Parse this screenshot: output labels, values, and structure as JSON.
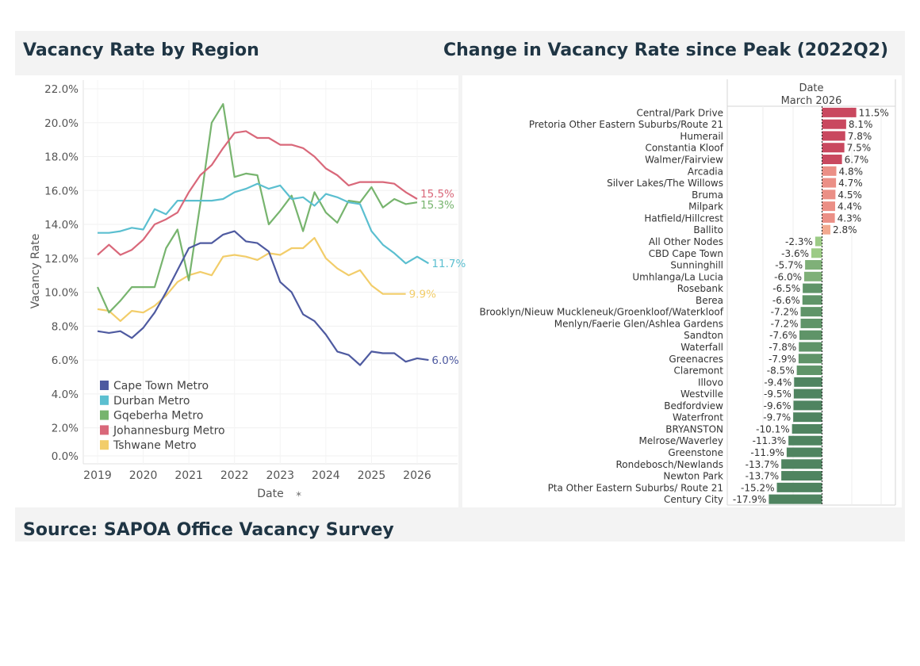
{
  "titles": {
    "left": "Vacancy Rate by Region",
    "right": "Change in Vacancy Rate since Peak (2022Q2)",
    "source": "Source: SAPOA Office Vacancy Survey"
  },
  "chart_data": [
    {
      "type": "line",
      "title": "Vacancy Rate by Region",
      "xlabel": "Date",
      "ylabel": "Vacancy Rate",
      "y_ticks": [
        "22.0%",
        "20.0%",
        "18.0%",
        "16.0%",
        "14.0%",
        "12.0%",
        "10.0%",
        "8.0%",
        "6.0%",
        "4.0%",
        "2.0%",
        "0.0%"
      ],
      "x_ticks": [
        "2019",
        "2020",
        "2021",
        "2022",
        "2023",
        "2024",
        "2025",
        "2026"
      ],
      "legend_position": "bottom-left",
      "grid": true,
      "series": [
        {
          "name": "Cape Town Metro",
          "color": "#4e5aa0",
          "end_label": "6.0%",
          "points": [
            [
              2019.0,
              7.7
            ],
            [
              2019.25,
              7.6
            ],
            [
              2019.5,
              7.7
            ],
            [
              2019.75,
              7.3
            ],
            [
              2020.0,
              7.9
            ],
            [
              2020.25,
              8.8
            ],
            [
              2020.5,
              10.0
            ],
            [
              2020.75,
              11.3
            ],
            [
              2021.0,
              12.6
            ],
            [
              2021.25,
              12.9
            ],
            [
              2021.5,
              12.9
            ],
            [
              2021.75,
              13.4
            ],
            [
              2022.0,
              13.6
            ],
            [
              2022.25,
              13.0
            ],
            [
              2022.5,
              12.9
            ],
            [
              2022.75,
              12.4
            ],
            [
              2023.0,
              10.6
            ],
            [
              2023.25,
              10.0
            ],
            [
              2023.5,
              8.7
            ],
            [
              2023.75,
              8.3
            ],
            [
              2024.0,
              7.5
            ],
            [
              2024.25,
              6.5
            ],
            [
              2024.5,
              6.3
            ],
            [
              2024.75,
              5.7
            ],
            [
              2025.0,
              6.5
            ],
            [
              2025.25,
              6.4
            ],
            [
              2025.5,
              6.4
            ],
            [
              2025.75,
              5.9
            ],
            [
              2026.0,
              6.1
            ],
            [
              2026.25,
              6.0
            ]
          ]
        },
        {
          "name": "Durban Metro",
          "color": "#5bbfd0",
          "end_label": "11.7%",
          "points": [
            [
              2019.0,
              13.5
            ],
            [
              2019.25,
              13.5
            ],
            [
              2019.5,
              13.6
            ],
            [
              2019.75,
              13.8
            ],
            [
              2020.0,
              13.7
            ],
            [
              2020.25,
              14.9
            ],
            [
              2020.5,
              14.6
            ],
            [
              2020.75,
              15.4
            ],
            [
              2021.0,
              15.4
            ],
            [
              2021.25,
              15.4
            ],
            [
              2021.5,
              15.4
            ],
            [
              2021.75,
              15.5
            ],
            [
              2022.0,
              15.9
            ],
            [
              2022.25,
              16.1
            ],
            [
              2022.5,
              16.4
            ],
            [
              2022.75,
              16.1
            ],
            [
              2023.0,
              16.3
            ],
            [
              2023.25,
              15.5
            ],
            [
              2023.5,
              15.6
            ],
            [
              2023.75,
              15.1
            ],
            [
              2024.0,
              15.8
            ],
            [
              2024.25,
              15.6
            ],
            [
              2024.5,
              15.3
            ],
            [
              2024.75,
              15.2
            ],
            [
              2025.0,
              13.6
            ],
            [
              2025.25,
              12.8
            ],
            [
              2025.5,
              12.3
            ],
            [
              2025.75,
              11.7
            ],
            [
              2026.0,
              12.1
            ],
            [
              2026.25,
              11.7
            ]
          ]
        },
        {
          "name": "Gqeberha Metro",
          "color": "#77b46e",
          "end_label": "15.3%",
          "points": [
            [
              2019.0,
              10.3
            ],
            [
              2019.25,
              8.8
            ],
            [
              2019.5,
              9.5
            ],
            [
              2019.75,
              10.3
            ],
            [
              2020.0,
              10.3
            ],
            [
              2020.25,
              10.3
            ],
            [
              2020.5,
              12.6
            ],
            [
              2020.75,
              13.7
            ],
            [
              2021.0,
              10.7
            ],
            [
              2021.25,
              15.2
            ],
            [
              2021.5,
              20.0
            ],
            [
              2021.75,
              21.1
            ],
            [
              2022.0,
              16.8
            ],
            [
              2022.25,
              17.0
            ],
            [
              2022.5,
              16.9
            ],
            [
              2022.75,
              14.0
            ],
            [
              2023.0,
              14.8
            ],
            [
              2023.25,
              15.7
            ],
            [
              2023.5,
              13.6
            ],
            [
              2023.75,
              15.9
            ],
            [
              2024.0,
              14.7
            ],
            [
              2024.25,
              14.1
            ],
            [
              2024.5,
              15.4
            ],
            [
              2024.75,
              15.3
            ],
            [
              2025.0,
              16.2
            ],
            [
              2025.25,
              15.0
            ],
            [
              2025.5,
              15.5
            ],
            [
              2025.75,
              15.2
            ],
            [
              2026.0,
              15.3
            ]
          ]
        },
        {
          "name": "Johannesburg Metro",
          "color": "#d9687a",
          "end_label": "15.5%",
          "points": [
            [
              2019.0,
              12.2
            ],
            [
              2019.25,
              12.8
            ],
            [
              2019.5,
              12.2
            ],
            [
              2019.75,
              12.5
            ],
            [
              2020.0,
              13.1
            ],
            [
              2020.25,
              14.0
            ],
            [
              2020.5,
              14.3
            ],
            [
              2020.75,
              14.7
            ],
            [
              2021.0,
              15.9
            ],
            [
              2021.25,
              16.9
            ],
            [
              2021.5,
              17.5
            ],
            [
              2021.75,
              18.5
            ],
            [
              2022.0,
              19.4
            ],
            [
              2022.25,
              19.5
            ],
            [
              2022.5,
              19.1
            ],
            [
              2022.75,
              19.1
            ],
            [
              2023.0,
              18.7
            ],
            [
              2023.25,
              18.7
            ],
            [
              2023.5,
              18.5
            ],
            [
              2023.75,
              18.0
            ],
            [
              2024.0,
              17.3
            ],
            [
              2024.25,
              16.9
            ],
            [
              2024.5,
              16.3
            ],
            [
              2024.75,
              16.5
            ],
            [
              2025.0,
              16.5
            ],
            [
              2025.25,
              16.5
            ],
            [
              2025.5,
              16.4
            ],
            [
              2025.75,
              15.9
            ],
            [
              2026.0,
              15.5
            ]
          ]
        },
        {
          "name": "Tshwane Metro",
          "color": "#f2cd6a",
          "end_label": "9.9%",
          "points": [
            [
              2019.0,
              9.0
            ],
            [
              2019.25,
              8.9
            ],
            [
              2019.5,
              8.3
            ],
            [
              2019.75,
              8.9
            ],
            [
              2020.0,
              8.8
            ],
            [
              2020.25,
              9.2
            ],
            [
              2020.5,
              9.8
            ],
            [
              2020.75,
              10.6
            ],
            [
              2021.0,
              11.0
            ],
            [
              2021.25,
              11.2
            ],
            [
              2021.5,
              11.0
            ],
            [
              2021.75,
              12.1
            ],
            [
              2022.0,
              12.2
            ],
            [
              2022.25,
              12.1
            ],
            [
              2022.5,
              11.9
            ],
            [
              2022.75,
              12.3
            ],
            [
              2023.0,
              12.2
            ],
            [
              2023.25,
              12.6
            ],
            [
              2023.5,
              12.6
            ],
            [
              2023.75,
              13.2
            ],
            [
              2024.0,
              12.0
            ],
            [
              2024.25,
              11.4
            ],
            [
              2024.5,
              11.0
            ],
            [
              2024.75,
              11.3
            ],
            [
              2025.0,
              10.4
            ],
            [
              2025.25,
              9.9
            ],
            [
              2025.5,
              9.9
            ],
            [
              2025.75,
              9.9
            ]
          ]
        }
      ]
    },
    {
      "type": "bar",
      "orientation": "horizontal",
      "title": "Change in Vacancy Rate since Peak (2022Q2)",
      "column_header": "Date",
      "column_subheader": "March 2026",
      "categories": [
        "Central/Park Drive",
        "Pretoria Other Eastern Suburbs/Route 21",
        "Humerail",
        "Constantia Kloof",
        "Walmer/Fairview",
        "Arcadia",
        "Silver Lakes/The Willows",
        "Bruma",
        "Milpark",
        "Hatfield/Hillcrest",
        "Ballito",
        "All Other Nodes",
        "CBD Cape Town",
        "Sunninghill",
        "Umhlanga/La Lucia",
        "Rosebank",
        "Berea",
        "Brooklyn/Nieuw Muckleneuk/Groenkloof/Waterkloof",
        "Menlyn/Faerie Glen/Ashlea Gardens",
        "Sandton",
        "Waterfall",
        "Greenacres",
        "Claremont",
        "Illovo",
        "Westville",
        "Bedfordview",
        "Waterfront",
        "BRYANSTON",
        "Melrose/Waverley",
        "Greenstone",
        "Rondebosch/Newlands",
        "Newton Park",
        "Pta Other Eastern Suburbs/ Route 21",
        "Century City"
      ],
      "values": [
        11.5,
        8.1,
        7.8,
        7.5,
        6.7,
        4.8,
        4.7,
        4.5,
        4.4,
        4.3,
        2.8,
        -2.3,
        -3.6,
        -5.7,
        -6.0,
        -6.5,
        -6.6,
        -7.2,
        -7.2,
        -7.6,
        -7.8,
        -7.9,
        -8.5,
        -9.4,
        -9.5,
        -9.6,
        -9.7,
        -10.1,
        -11.3,
        -11.9,
        -13.7,
        -13.7,
        -15.2,
        -17.9
      ],
      "labels": [
        "11.5%",
        "8.1%",
        "7.8%",
        "7.5%",
        "6.7%",
        "4.8%",
        "4.7%",
        "4.5%",
        "4.4%",
        "4.3%",
        "2.8%",
        "-2.3%",
        "-3.6%",
        "-5.7%",
        "-6.0%",
        "-6.5%",
        "-6.6%",
        "-7.2%",
        "-7.2%",
        "-7.6%",
        "-7.8%",
        "-7.9%",
        "-8.5%",
        "-9.4%",
        "-9.5%",
        "-9.6%",
        "-9.7%",
        "-10.1%",
        "-11.3%",
        "-11.9%",
        "-13.7%",
        "-13.7%",
        "-15.2%",
        "-17.9%"
      ],
      "colors": {
        "positive_strong": "#c9485f",
        "positive_mid": "#df6c74",
        "positive_light": "#eb8f86",
        "positive_faint": "#f2a98f",
        "negative_faint": "#9ccb86",
        "negative_light": "#7fb078",
        "negative_mid": "#5f9468",
        "negative_strong": "#4f8460"
      }
    }
  ]
}
